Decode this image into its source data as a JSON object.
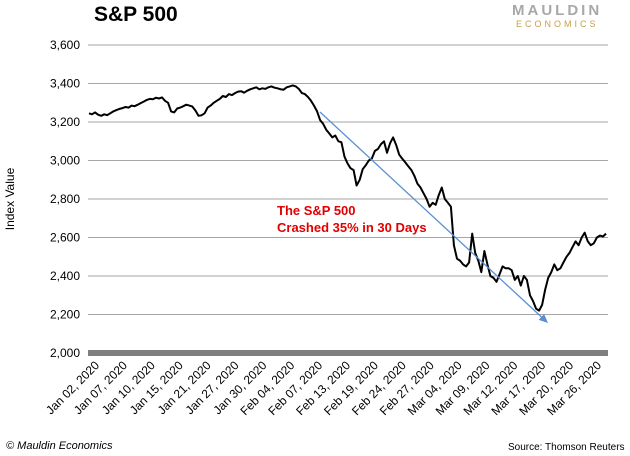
{
  "header": {
    "title": "S&P 500"
  },
  "logo": {
    "main": "MAULDIN",
    "sub": "ECONOMICS"
  },
  "footer": {
    "copyright": "© Mauldin Economics",
    "source": "Source: Thomson Reuters"
  },
  "annotation": {
    "line1": "The S&P 500",
    "line2": "Crashed 35% in 30 Days"
  },
  "colors": {
    "line": "#000000",
    "grid": "#a6a6a6",
    "arrow": "#5b8fd0",
    "annotation": "#e00000",
    "axis": "#7f7f7f"
  },
  "chart_data": {
    "type": "line",
    "title": "S&P 500",
    "xlabel": "",
    "ylabel": "Index Value",
    "ylim": [
      2000,
      3600
    ],
    "yticks": [
      2000,
      2200,
      2400,
      2600,
      2800,
      3000,
      3200,
      3400,
      3600
    ],
    "ytick_labels": [
      "2,000",
      "2,200",
      "2,400",
      "2,600",
      "2,800",
      "3,000",
      "3,200",
      "3,400",
      "3,600"
    ],
    "grid": true,
    "xtick_labels": [
      "Jan 02, 2020",
      "Jan 07, 2020",
      "Jan 10, 2020",
      "Jan 15, 2020",
      "Jan 21, 2020",
      "Jan 27, 2020",
      "Jan 30, 2020",
      "Feb 04, 2020",
      "Feb 07, 2020",
      "Feb 13, 2020",
      "Feb 19, 2020",
      "Feb 24, 2020",
      "Feb 27, 2020",
      "Mar 04, 2020",
      "Mar 09, 2020",
      "Mar 12, 2020",
      "Mar 17, 2020",
      "Mar 20, 2020",
      "Mar 26, 2020"
    ],
    "series": [
      {
        "values": [
          3245,
          3240,
          3250,
          3238,
          3232,
          3240,
          3236,
          3245,
          3255,
          3262,
          3268,
          3272,
          3278,
          3275,
          3285,
          3282,
          3290,
          3298,
          3306,
          3315,
          3320,
          3318,
          3326,
          3322,
          3328,
          3310,
          3300,
          3255,
          3250,
          3270,
          3275,
          3282,
          3290,
          3285,
          3280,
          3260,
          3232,
          3235,
          3245,
          3275,
          3285,
          3300,
          3310,
          3320,
          3335,
          3330,
          3345,
          3340,
          3350,
          3358,
          3360,
          3352,
          3362,
          3370,
          3375,
          3380,
          3370,
          3375,
          3372,
          3380,
          3385,
          3378,
          3375,
          3370,
          3368,
          3380,
          3385,
          3390,
          3385,
          3372,
          3350,
          3345,
          3330,
          3310,
          3285,
          3255,
          3210,
          3190,
          3160,
          3140,
          3120,
          3130,
          3100,
          3095,
          3020,
          2985,
          2960,
          2950,
          2870,
          2900,
          2955,
          2975,
          3000,
          3010,
          3050,
          3060,
          3085,
          3100,
          3040,
          3090,
          3120,
          3080,
          3030,
          3010,
          2990,
          2970,
          2950,
          2920,
          2880,
          2860,
          2830,
          2800,
          2760,
          2780,
          2770,
          2820,
          2860,
          2800,
          2780,
          2760,
          2560,
          2490,
          2480,
          2460,
          2450,
          2470,
          2620,
          2520,
          2480,
          2420,
          2530,
          2460,
          2400,
          2390,
          2370,
          2410,
          2450,
          2440,
          2440,
          2430,
          2380,
          2400,
          2350,
          2400,
          2380,
          2300,
          2270,
          2230,
          2220,
          2250,
          2330,
          2390,
          2420,
          2460,
          2430,
          2440,
          2470,
          2500,
          2520,
          2550,
          2580,
          2560,
          2600,
          2625,
          2580,
          2560,
          2570,
          2600,
          2610,
          2605,
          2620
        ]
      }
    ]
  }
}
